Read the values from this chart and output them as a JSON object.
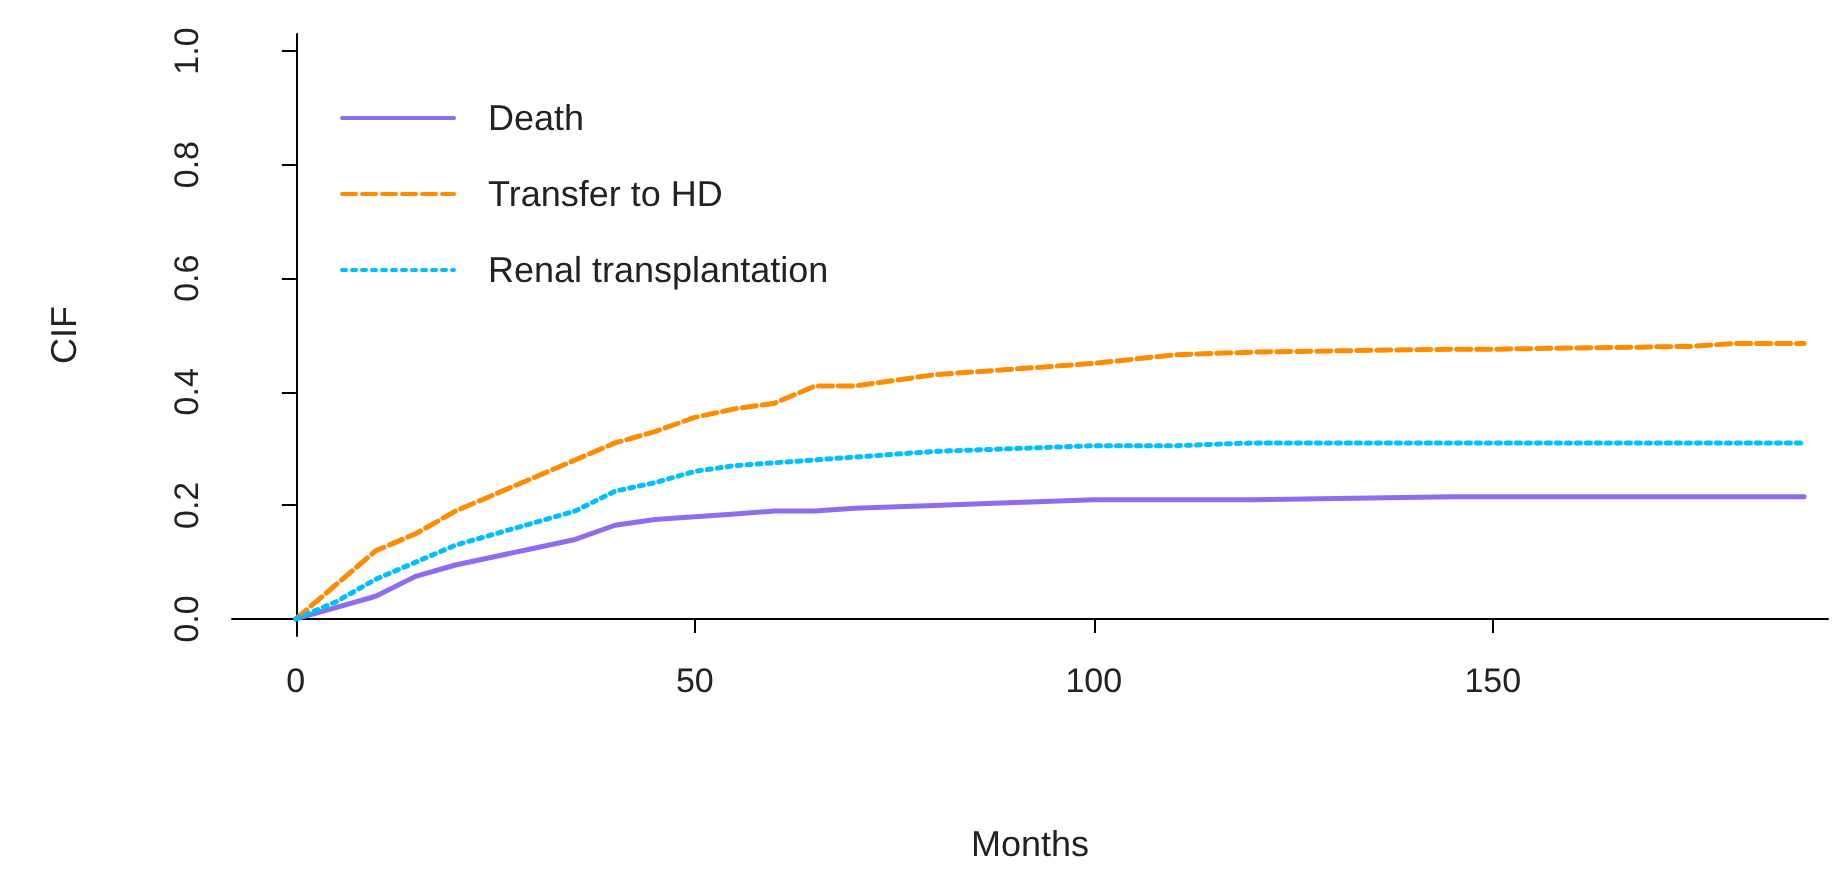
{
  "chart_data": {
    "type": "line",
    "xlabel": "Months",
    "ylabel": "CIF",
    "xlim": [
      -8,
      192
    ],
    "ylim": [
      -0.03,
      1.03
    ],
    "xticks": [
      0,
      50,
      100,
      150
    ],
    "yticks": [
      {
        "value": 0,
        "label": "0.0"
      },
      {
        "value": 0.2,
        "label": "0.2"
      },
      {
        "value": 0.4,
        "label": "0.4"
      },
      {
        "value": 0.6,
        "label": "0.6"
      },
      {
        "value": 0.8,
        "label": "0.8"
      },
      {
        "value": 1,
        "label": "1.0"
      }
    ],
    "legend": "top left",
    "marker": "none",
    "x": [
      0,
      5,
      10,
      15,
      20,
      25,
      30,
      35,
      40,
      45,
      50,
      55,
      60,
      65,
      70,
      80,
      90,
      100,
      110,
      120,
      145,
      150,
      175,
      180,
      189
    ],
    "series": [
      {
        "name": "Death",
        "color": "#8e6cf0",
        "line_style": "solid",
        "values": [
          0,
          0.02,
          0.04,
          0.075,
          0.095,
          0.11,
          0.125,
          0.14,
          0.165,
          0.175,
          0.18,
          0.185,
          0.19,
          0.19,
          0.195,
          0.2,
          0.205,
          0.21,
          0.21,
          0.21,
          0.215,
          0.215,
          0.215,
          0.215,
          0.215
        ]
      },
      {
        "name": "Transfer to HD",
        "color": "#ff8c00",
        "line_style": "dashed",
        "values": [
          0,
          0.06,
          0.12,
          0.15,
          0.19,
          0.22,
          0.25,
          0.28,
          0.31,
          0.33,
          0.355,
          0.37,
          0.38,
          0.41,
          0.41,
          0.43,
          0.44,
          0.45,
          0.465,
          0.47,
          0.475,
          0.475,
          0.48,
          0.485,
          0.485
        ]
      },
      {
        "name": "Renal transplantation",
        "color": "#00bfff",
        "line_style": "dotted",
        "values": [
          0,
          0.03,
          0.07,
          0.1,
          0.13,
          0.15,
          0.17,
          0.19,
          0.225,
          0.24,
          0.26,
          0.27,
          0.275,
          0.28,
          0.285,
          0.295,
          0.3,
          0.305,
          0.305,
          0.31,
          0.31,
          0.31,
          0.31,
          0.31,
          0.31
        ]
      }
    ]
  }
}
